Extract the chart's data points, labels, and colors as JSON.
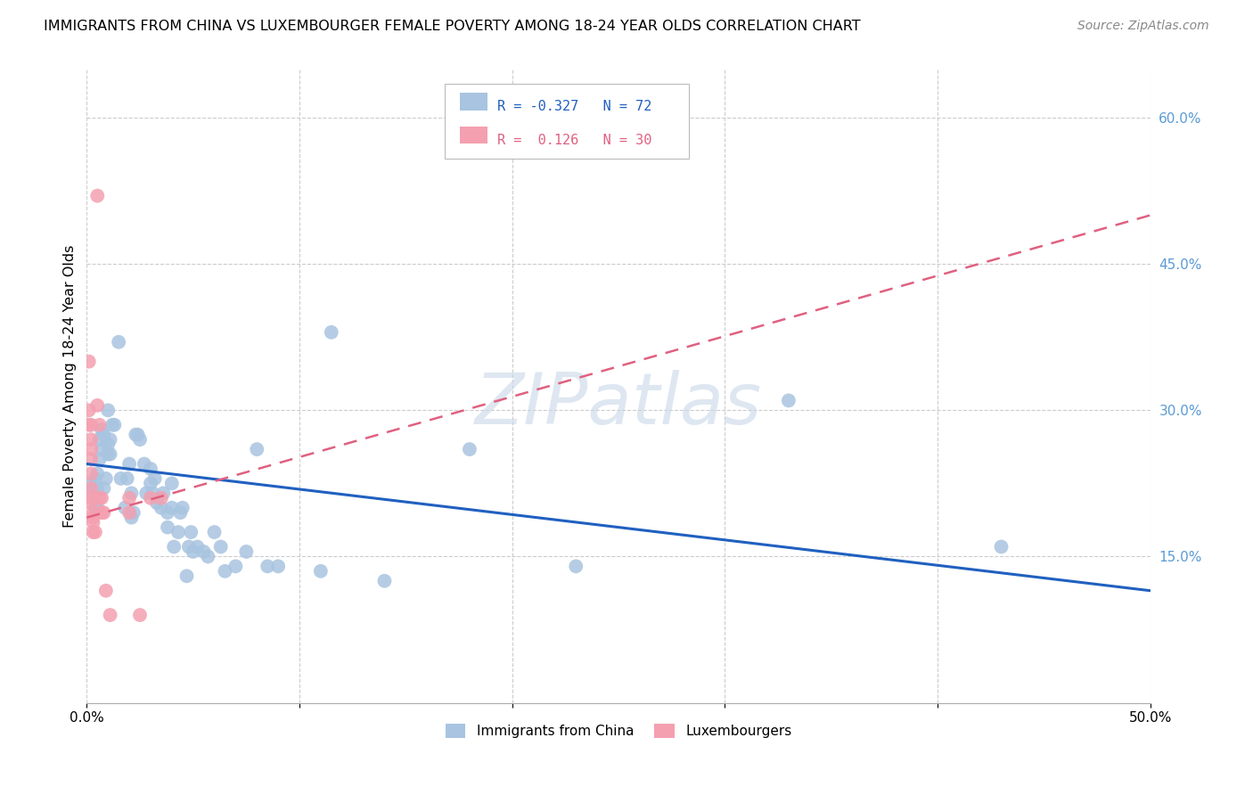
{
  "title": "IMMIGRANTS FROM CHINA VS LUXEMBOURGER FEMALE POVERTY AMONG 18-24 YEAR OLDS CORRELATION CHART",
  "source": "Source: ZipAtlas.com",
  "ylabel": "Female Poverty Among 18-24 Year Olds",
  "xlim": [
    0.0,
    50.0
  ],
  "ylim": [
    0.0,
    65.0
  ],
  "xtick_positions": [
    0.0,
    10.0,
    20.0,
    30.0,
    40.0,
    50.0
  ],
  "xtick_labels_show": [
    "0.0%",
    "",
    "",
    "",
    "",
    "50.0%"
  ],
  "ytick_values_right": [
    15.0,
    30.0,
    45.0,
    60.0
  ],
  "ytick_labels_right": [
    "15.0%",
    "30.0%",
    "45.0%",
    "60.0%"
  ],
  "grid_color": "#cccccc",
  "background_color": "#ffffff",
  "watermark": "ZIPatlas",
  "blue_color": "#a8c4e0",
  "pink_color": "#f4a0b0",
  "blue_line_color": "#2060c0",
  "pink_line_color": "#e06080",
  "blue_scatter": [
    [
      0.2,
      22.5
    ],
    [
      0.3,
      21.5
    ],
    [
      0.3,
      22.0
    ],
    [
      0.4,
      23.0
    ],
    [
      0.4,
      20.0
    ],
    [
      0.5,
      23.5
    ],
    [
      0.5,
      22.0
    ],
    [
      0.5,
      20.0
    ],
    [
      0.6,
      27.0
    ],
    [
      0.6,
      25.0
    ],
    [
      0.7,
      28.0
    ],
    [
      0.7,
      26.0
    ],
    [
      0.8,
      27.5
    ],
    [
      0.8,
      22.0
    ],
    [
      0.9,
      23.0
    ],
    [
      1.0,
      30.0
    ],
    [
      1.0,
      26.5
    ],
    [
      1.0,
      25.5
    ],
    [
      1.1,
      27.0
    ],
    [
      1.1,
      25.5
    ],
    [
      1.2,
      28.5
    ],
    [
      1.3,
      28.5
    ],
    [
      1.5,
      37.0
    ],
    [
      1.6,
      23.0
    ],
    [
      1.8,
      20.0
    ],
    [
      1.9,
      23.0
    ],
    [
      2.0,
      24.5
    ],
    [
      2.1,
      21.5
    ],
    [
      2.1,
      19.0
    ],
    [
      2.2,
      19.5
    ],
    [
      2.3,
      27.5
    ],
    [
      2.4,
      27.5
    ],
    [
      2.5,
      27.0
    ],
    [
      2.7,
      24.5
    ],
    [
      2.8,
      21.5
    ],
    [
      3.0,
      24.0
    ],
    [
      3.0,
      22.5
    ],
    [
      3.1,
      21.5
    ],
    [
      3.2,
      23.0
    ],
    [
      3.3,
      20.5
    ],
    [
      3.5,
      20.0
    ],
    [
      3.6,
      21.5
    ],
    [
      3.8,
      19.5
    ],
    [
      3.8,
      18.0
    ],
    [
      4.0,
      22.5
    ],
    [
      4.0,
      20.0
    ],
    [
      4.1,
      16.0
    ],
    [
      4.3,
      17.5
    ],
    [
      4.4,
      19.5
    ],
    [
      4.5,
      20.0
    ],
    [
      4.7,
      13.0
    ],
    [
      4.8,
      16.0
    ],
    [
      4.9,
      17.5
    ],
    [
      5.0,
      15.5
    ],
    [
      5.2,
      16.0
    ],
    [
      5.5,
      15.5
    ],
    [
      5.7,
      15.0
    ],
    [
      6.0,
      17.5
    ],
    [
      6.3,
      16.0
    ],
    [
      6.5,
      13.5
    ],
    [
      7.0,
      14.0
    ],
    [
      7.5,
      15.5
    ],
    [
      8.0,
      26.0
    ],
    [
      8.5,
      14.0
    ],
    [
      9.0,
      14.0
    ],
    [
      11.0,
      13.5
    ],
    [
      11.5,
      38.0
    ],
    [
      14.0,
      12.5
    ],
    [
      18.0,
      26.0
    ],
    [
      23.0,
      14.0
    ],
    [
      33.0,
      31.0
    ],
    [
      43.0,
      16.0
    ]
  ],
  "pink_scatter": [
    [
      0.1,
      35.0
    ],
    [
      0.1,
      30.0
    ],
    [
      0.1,
      28.5
    ],
    [
      0.2,
      28.5
    ],
    [
      0.2,
      27.0
    ],
    [
      0.2,
      26.0
    ],
    [
      0.2,
      25.0
    ],
    [
      0.2,
      23.5
    ],
    [
      0.2,
      22.0
    ],
    [
      0.2,
      21.0
    ],
    [
      0.2,
      20.5
    ],
    [
      0.3,
      19.0
    ],
    [
      0.3,
      19.5
    ],
    [
      0.3,
      18.5
    ],
    [
      0.3,
      17.5
    ],
    [
      0.4,
      17.5
    ],
    [
      0.5,
      52.0
    ],
    [
      0.5,
      30.5
    ],
    [
      0.6,
      28.5
    ],
    [
      0.6,
      21.0
    ],
    [
      0.7,
      21.0
    ],
    [
      0.7,
      19.5
    ],
    [
      0.8,
      19.5
    ],
    [
      0.9,
      11.5
    ],
    [
      1.1,
      9.0
    ],
    [
      2.0,
      21.0
    ],
    [
      2.0,
      19.5
    ],
    [
      2.5,
      9.0
    ],
    [
      3.0,
      21.0
    ],
    [
      3.5,
      21.0
    ]
  ],
  "blue_trend_x": [
    0.0,
    50.0
  ],
  "blue_trend_y": [
    24.5,
    11.5
  ],
  "pink_trend_x": [
    0.0,
    50.0
  ],
  "pink_trend_y": [
    19.0,
    50.0
  ]
}
